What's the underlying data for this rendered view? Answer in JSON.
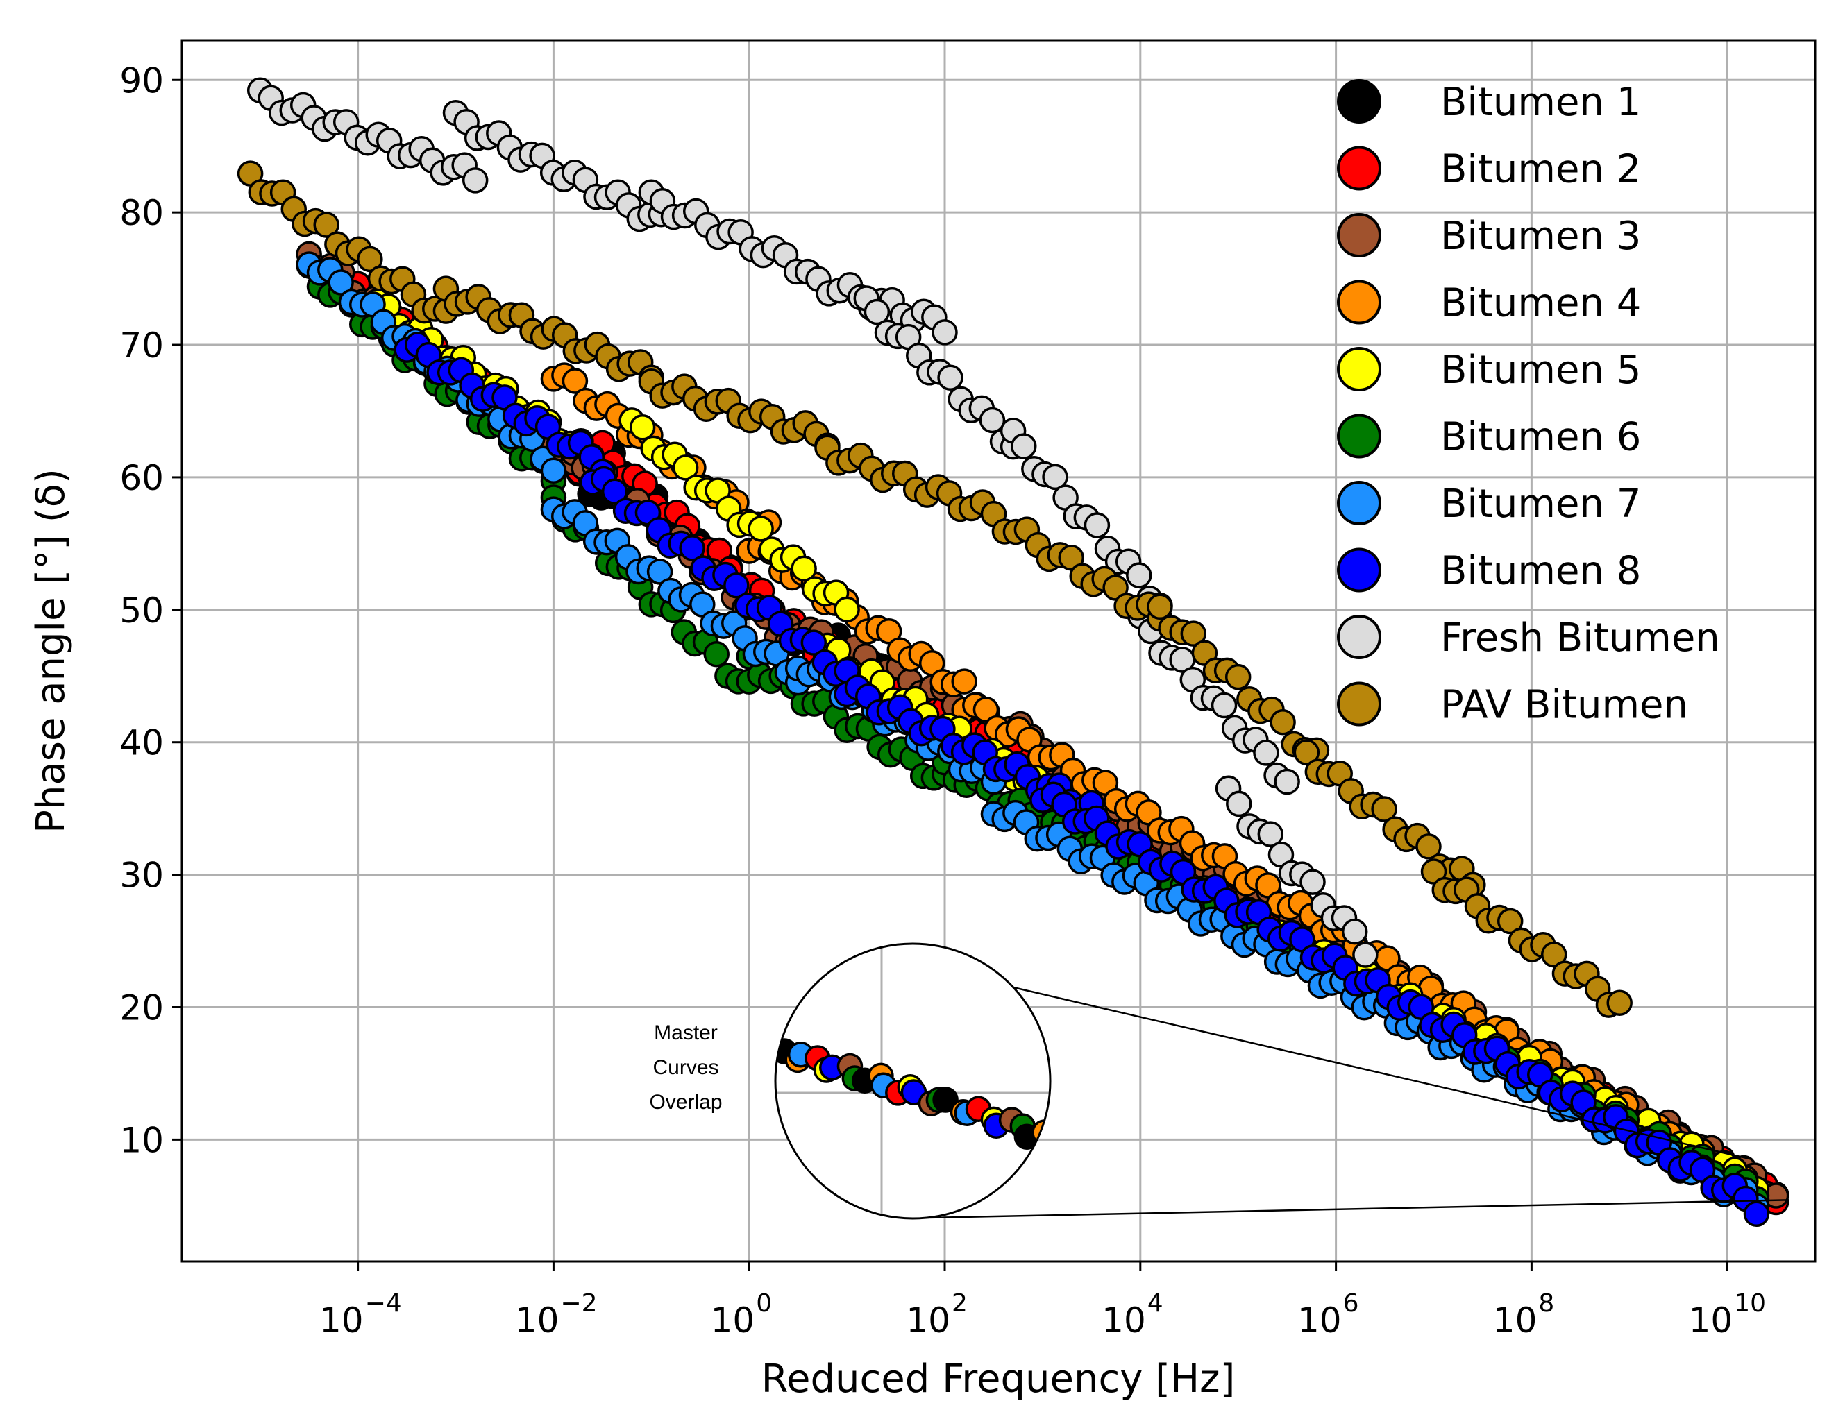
{
  "chart_data": {
    "type": "scatter",
    "title": "",
    "xlabel": "Reduced Frequency [Hz]",
    "ylabel": "Phase angle [°] (δ)",
    "xscale": "log",
    "xlim_log10": [
      -5.8,
      10.9
    ],
    "ylim": [
      0.8,
      93
    ],
    "x_ticks": [
      {
        "base": "10",
        "exp": "−4",
        "value_log10": -4
      },
      {
        "base": "10",
        "exp": "−2",
        "value_log10": -2
      },
      {
        "base": "10",
        "exp": "0",
        "value_log10": 0
      },
      {
        "base": "10",
        "exp": "2",
        "value_log10": 2
      },
      {
        "base": "10",
        "exp": "4",
        "value_log10": 4
      },
      {
        "base": "10",
        "exp": "6",
        "value_log10": 6
      },
      {
        "base": "10",
        "exp": "8",
        "value_log10": 8
      },
      {
        "base": "10",
        "exp": "10",
        "value_log10": 10
      }
    ],
    "y_ticks": [
      10,
      20,
      30,
      40,
      50,
      60,
      70,
      80,
      90
    ],
    "grid": true,
    "legend_position": "top-right",
    "annotation": {
      "lines": [
        "Master",
        "Curves",
        "Overlap"
      ],
      "zoom_region_log10_x": [
        8.8,
        10.4
      ],
      "zoom_region_y": [
        4.5,
        12
      ]
    },
    "series": [
      {
        "name": "Bitumen 1",
        "color": "#000000",
        "segments": [
          {
            "x0": -4.0,
            "x1": -1.4,
            "y0": 73,
            "y1": 58
          },
          {
            "x0": -1.5,
            "x1": 1.0,
            "y0": 62,
            "y1": 44
          },
          {
            "x0": 0.8,
            "x1": 3.2,
            "y0": 48,
            "y1": 36
          },
          {
            "x0": 3.0,
            "x1": 10.5,
            "y0": 36,
            "y1": 5.5
          }
        ]
      },
      {
        "name": "Bitumen 2",
        "color": "#ff0000",
        "segments": [
          {
            "x0": -4.0,
            "x1": -1.4,
            "y0": 74,
            "y1": 59
          },
          {
            "x0": -1.5,
            "x1": 1.0,
            "y0": 62,
            "y1": 45
          },
          {
            "x0": 0.8,
            "x1": 3.2,
            "y0": 47,
            "y1": 37
          },
          {
            "x0": 3.0,
            "x1": 10.5,
            "y0": 36,
            "y1": 5.8
          }
        ]
      },
      {
        "name": "Bitumen 3",
        "color": "#a0522d",
        "segments": [
          {
            "x0": -4.5,
            "x1": -1.8,
            "y0": 77,
            "y1": 61
          },
          {
            "x0": -1.8,
            "x1": 0.5,
            "y0": 62,
            "y1": 47
          },
          {
            "x0": 0.4,
            "x1": 3.0,
            "y0": 49,
            "y1": 40
          },
          {
            "x0": 3.0,
            "x1": 10.5,
            "y0": 38,
            "y1": 6
          }
        ]
      },
      {
        "name": "Bitumen 4",
        "color": "#ff8c00",
        "segments": [
          {
            "x0": -2.0,
            "x1": 0.2,
            "y0": 68,
            "y1": 56
          },
          {
            "x0": 0.0,
            "x1": 2.2,
            "y0": 55,
            "y1": 44
          },
          {
            "x0": 2.2,
            "x1": 10.3,
            "y0": 43,
            "y1": 6
          }
        ]
      },
      {
        "name": "Bitumen 5",
        "color": "#ffff00",
        "segments": [
          {
            "x0": -3.8,
            "x1": -1.5,
            "y0": 73,
            "y1": 61
          },
          {
            "x0": -1.2,
            "x1": 1.0,
            "y0": 64,
            "y1": 50
          },
          {
            "x0": 0.8,
            "x1": 3.5,
            "y0": 47,
            "y1": 34
          },
          {
            "x0": 3.0,
            "x1": 10.3,
            "y0": 35,
            "y1": 6.5
          }
        ]
      },
      {
        "name": "Bitumen 6",
        "color": "#007a00",
        "segments": [
          {
            "x0": -4.5,
            "x1": -2.0,
            "y0": 75.5,
            "y1": 60
          },
          {
            "x0": -2.0,
            "x1": 0.0,
            "y0": 58,
            "y1": 44
          },
          {
            "x0": 0.0,
            "x1": 2.0,
            "y0": 46,
            "y1": 37
          },
          {
            "x0": 2.0,
            "x1": 10.3,
            "y0": 38,
            "y1": 6
          }
        ]
      },
      {
        "name": "Bitumen 7",
        "color": "#1e90ff",
        "segments": [
          {
            "x0": -4.5,
            "x1": -2.0,
            "y0": 76.5,
            "y1": 61
          },
          {
            "x0": -2.0,
            "x1": 0.5,
            "y0": 58,
            "y1": 45
          },
          {
            "x0": 0.5,
            "x1": 2.5,
            "y0": 46,
            "y1": 37
          },
          {
            "x0": 2.5,
            "x1": 10.3,
            "y0": 35,
            "y1": 5.2
          }
        ]
      },
      {
        "name": "Bitumen 8",
        "color": "#0000ff",
        "segments": [
          {
            "x0": -3.5,
            "x1": -1.5,
            "y0": 70,
            "y1": 61
          },
          {
            "x0": -1.6,
            "x1": 1.0,
            "y0": 60,
            "y1": 45
          },
          {
            "x0": 1.0,
            "x1": 3.5,
            "y0": 44,
            "y1": 35
          },
          {
            "x0": 3.0,
            "x1": 10.3,
            "y0": 36,
            "y1": 5
          }
        ]
      },
      {
        "name": "Fresh Bitumen",
        "color": "#dcdcdc",
        "segments": [
          {
            "x0": -5.0,
            "x1": -2.8,
            "y0": 88.7,
            "y1": 82.7
          },
          {
            "x0": -3.0,
            "x1": -0.9,
            "y0": 87,
            "y1": 79.3
          },
          {
            "x0": -1.0,
            "x1": 0.6,
            "y0": 81,
            "y1": 75.7
          },
          {
            "x0": 0.6,
            "x1": 2.0,
            "y0": 75,
            "y1": 71.5
          },
          {
            "x0": 1.2,
            "x1": 2.7,
            "y0": 73,
            "y1": 62.5
          },
          {
            "x0": 2.7,
            "x1": 4.2,
            "y0": 63,
            "y1": 50.5
          },
          {
            "x0": 4.0,
            "x1": 5.5,
            "y0": 49,
            "y1": 37.2
          },
          {
            "x0": 4.9,
            "x1": 6.3,
            "y0": 36,
            "y1": 24.5
          }
        ]
      },
      {
        "name": "PAV Bitumen",
        "color": "#b8860b",
        "segments": [
          {
            "x0": -5.1,
            "x1": -3.1,
            "y0": 82.7,
            "y1": 72
          },
          {
            "x0": -3.1,
            "x1": -1.0,
            "y0": 74,
            "y1": 67.8
          },
          {
            "x0": -1.0,
            "x1": 0.8,
            "y0": 67,
            "y1": 63
          },
          {
            "x0": 0.8,
            "x1": 2.5,
            "y0": 62,
            "y1": 57.2
          },
          {
            "x0": 2.5,
            "x1": 4.2,
            "y0": 57,
            "y1": 49.3
          },
          {
            "x0": 4.2,
            "x1": 5.8,
            "y0": 50,
            "y1": 38.8
          },
          {
            "x0": 5.7,
            "x1": 7.4,
            "y0": 39,
            "y1": 29.2
          },
          {
            "x0": 7.0,
            "x1": 8.9,
            "y0": 30,
            "y1": 20.2
          }
        ]
      }
    ]
  }
}
